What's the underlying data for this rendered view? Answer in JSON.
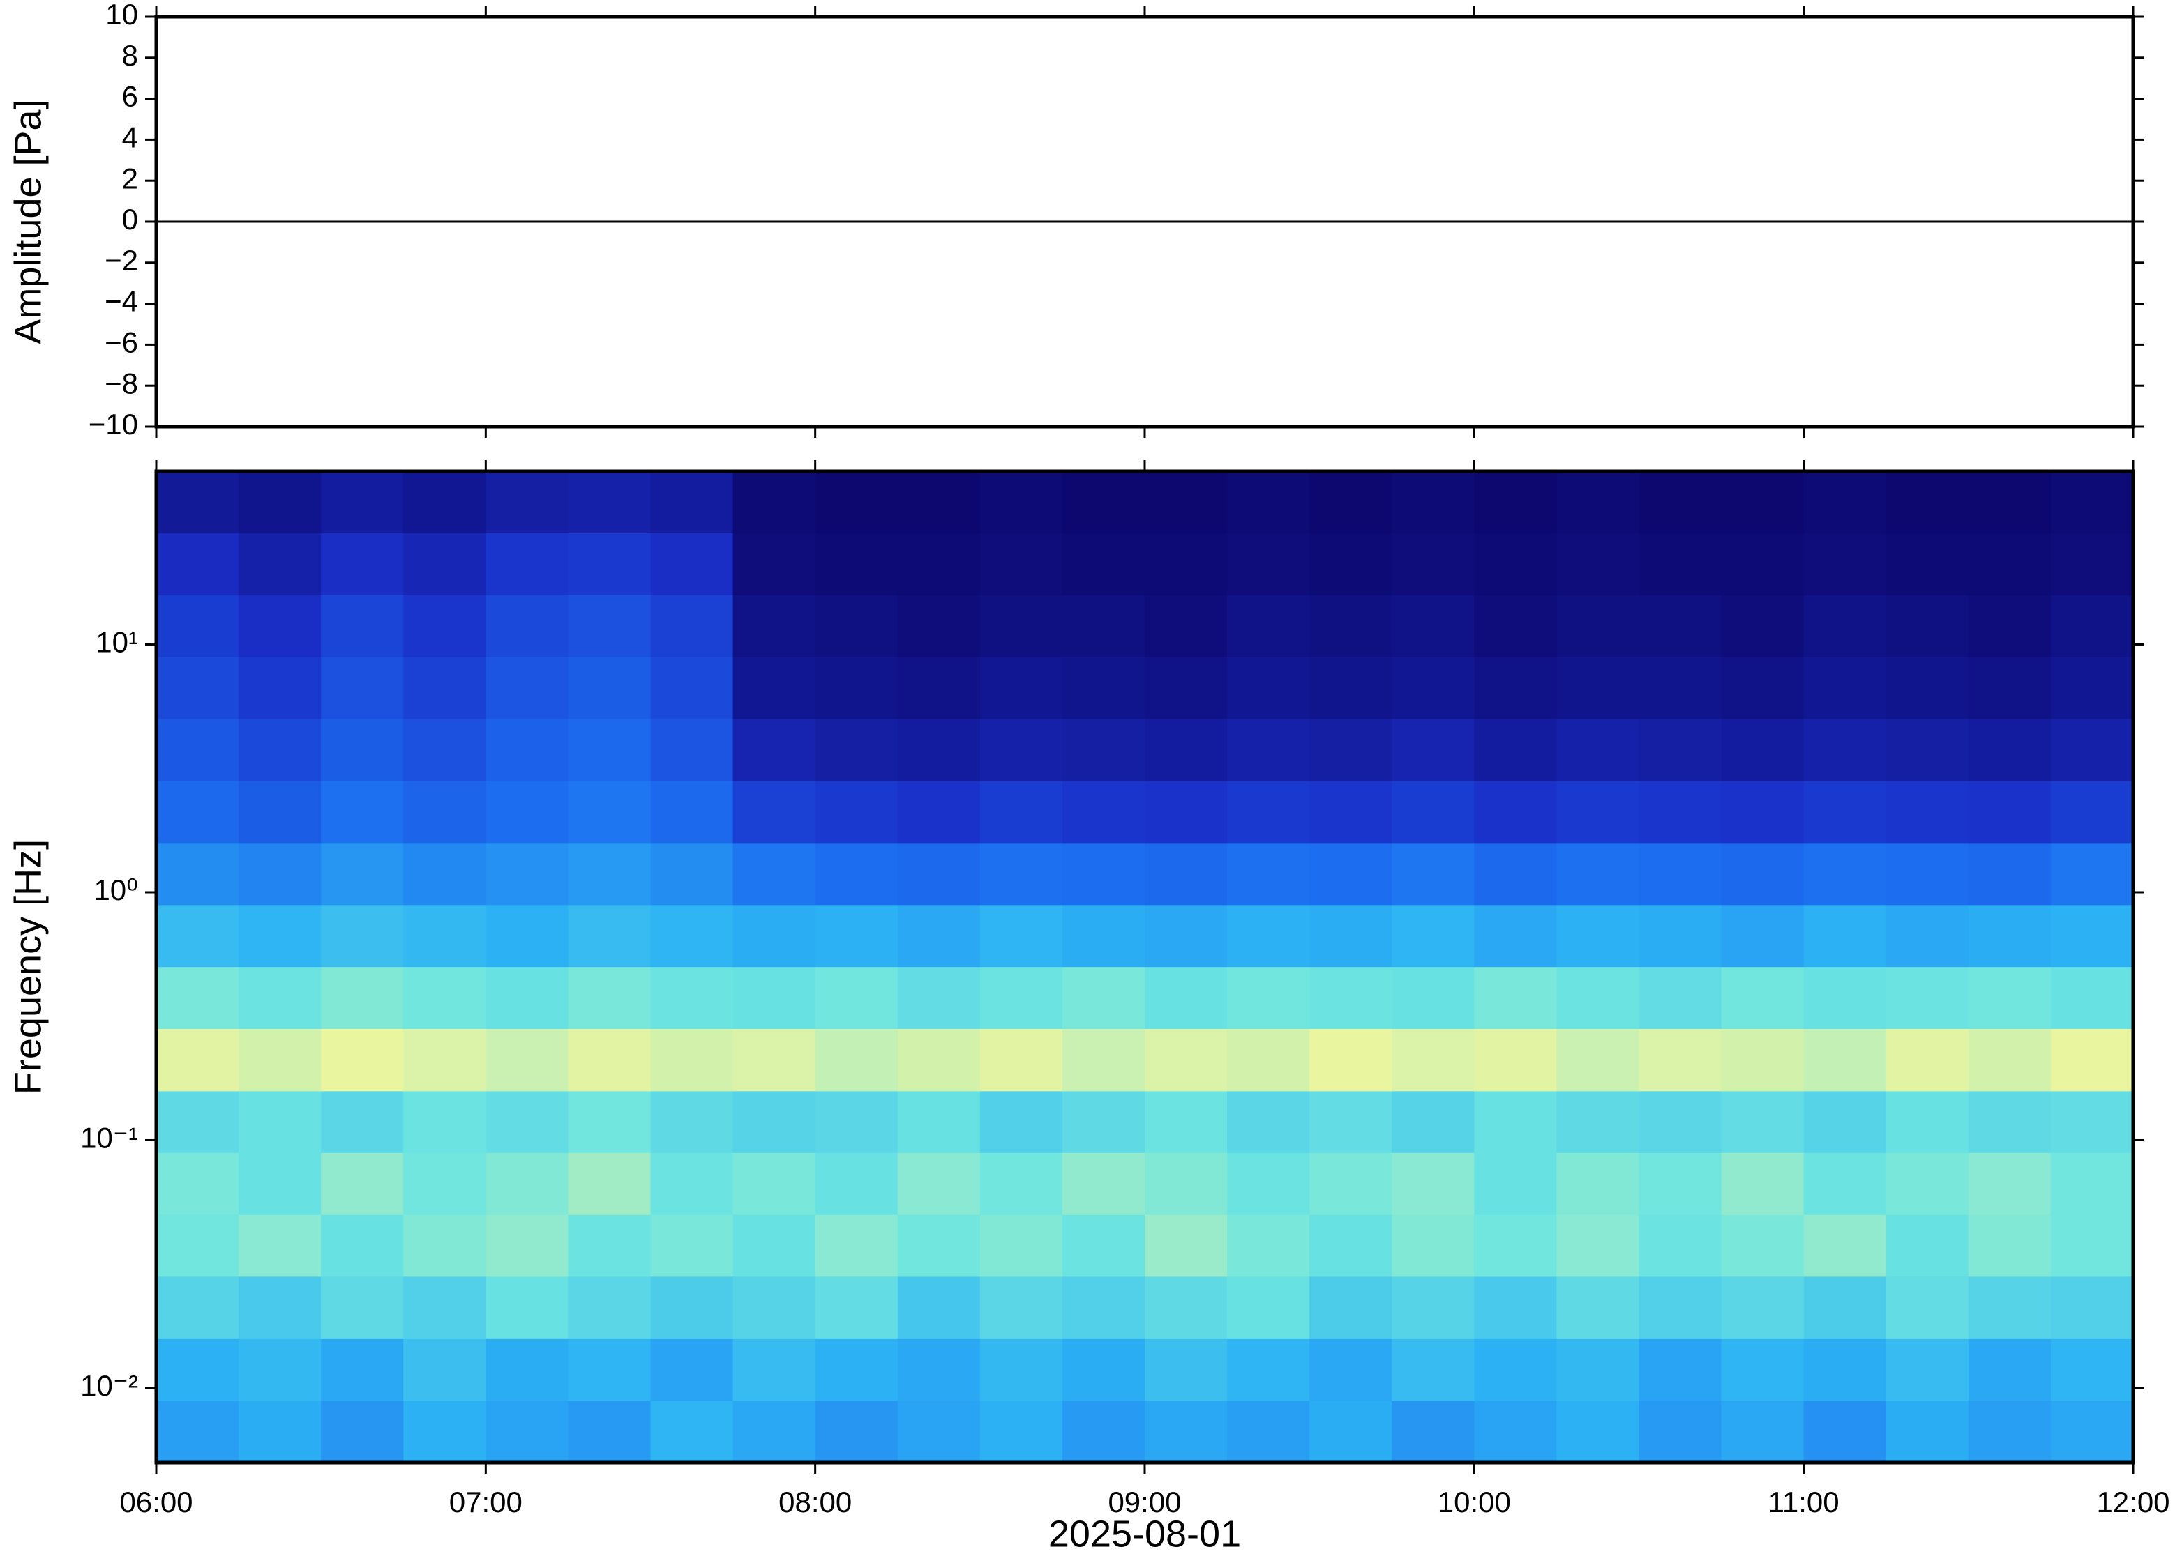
{
  "chart_data": [
    {
      "type": "line",
      "y_label": "Amplitude [Pa]",
      "xlim": [
        6,
        12
      ],
      "xticks": [
        6,
        7,
        8,
        9,
        10,
        11,
        12
      ],
      "ylim": [
        -10,
        10
      ],
      "yticks": [
        {
          "value": -10,
          "label": "−10"
        },
        {
          "value": -8,
          "label": "−8"
        },
        {
          "value": -6,
          "label": "−6"
        },
        {
          "value": -4,
          "label": "−4"
        },
        {
          "value": -2,
          "label": "−2"
        },
        0,
        2,
        4,
        6,
        8,
        10
      ],
      "series": [
        {
          "color": "#000000",
          "x": [
            6,
            6.5,
            7,
            7.5,
            8,
            8.5,
            9,
            9.5,
            10,
            10.5,
            11,
            11.5,
            12
          ],
          "values": [
            0,
            0,
            0,
            0,
            0,
            0,
            0,
            0,
            0,
            0,
            0,
            0,
            0
          ]
        }
      ]
    },
    {
      "type": "heatmap",
      "y_label": "Frequency [Hz]",
      "x_label": "2025-08-01",
      "xlim": [
        6,
        12
      ],
      "xticks": [
        {
          "value": 6,
          "label": "06:00"
        },
        {
          "value": 7,
          "label": "07:00"
        },
        {
          "value": 8,
          "label": "08:00"
        },
        {
          "value": 9,
          "label": "09:00"
        },
        {
          "value": 10,
          "label": "10:00"
        },
        {
          "value": 11,
          "label": "11:00"
        },
        {
          "value": 12,
          "label": "12:00"
        }
      ],
      "ylim": [
        0.005,
        50
      ],
      "log_y": true,
      "yticks": [
        {
          "value": 0.01,
          "label": "10⁻²"
        },
        {
          "value": 0.1,
          "label": "10⁻¹"
        },
        {
          "value": 1,
          "label": "10⁰"
        },
        {
          "value": 10,
          "label": "10¹"
        }
      ],
      "colormap": [
        "#0c0870",
        "#1a2fc8",
        "#1c6cf0",
        "#2cb2f4",
        "#6ee6e0",
        "#eaf5a0"
      ],
      "x_bins": [
        6,
        6.25,
        6.5,
        6.75,
        7,
        7.25,
        7.5,
        7.75,
        8,
        8.25,
        8.5,
        8.75,
        9,
        9.25,
        9.5,
        9.75,
        10,
        10.25,
        10.5,
        10.75,
        11,
        11.25,
        11.5,
        11.75,
        12
      ],
      "y_bins": [
        0.005,
        0.0089,
        0.0158,
        0.0282,
        0.0501,
        0.0891,
        0.158,
        0.282,
        0.501,
        0.891,
        1.585,
        2.818,
        5.012,
        8.913,
        15.85,
        28.18,
        50.12
      ],
      "z": [
        [
          0.42,
          0.45,
          0.4,
          0.46,
          0.43,
          0.41,
          0.47,
          0.44,
          0.4,
          0.43,
          0.46,
          0.41,
          0.44,
          0.42,
          0.45,
          0.4,
          0.43,
          0.46,
          0.41,
          0.44,
          0.39,
          0.45,
          0.42,
          0.44
        ],
        [
          0.46,
          0.48,
          0.44,
          0.5,
          0.45,
          0.47,
          0.43,
          0.49,
          0.46,
          0.44,
          0.48,
          0.45,
          0.5,
          0.47,
          0.44,
          0.49,
          0.46,
          0.48,
          0.43,
          0.47,
          0.45,
          0.49,
          0.44,
          0.47
        ],
        [
          0.56,
          0.53,
          0.58,
          0.55,
          0.6,
          0.57,
          0.54,
          0.56,
          0.59,
          0.52,
          0.57,
          0.55,
          0.58,
          0.6,
          0.54,
          0.56,
          0.53,
          0.58,
          0.55,
          0.57,
          0.54,
          0.59,
          0.56,
          0.55
        ],
        [
          0.62,
          0.65,
          0.6,
          0.64,
          0.66,
          0.61,
          0.63,
          0.6,
          0.65,
          0.62,
          0.64,
          0.61,
          0.67,
          0.63,
          0.6,
          0.64,
          0.62,
          0.65,
          0.61,
          0.63,
          0.66,
          0.6,
          0.64,
          0.62
        ],
        [
          0.63,
          0.6,
          0.66,
          0.62,
          0.64,
          0.68,
          0.61,
          0.63,
          0.6,
          0.65,
          0.62,
          0.66,
          0.64,
          0.61,
          0.63,
          0.65,
          0.6,
          0.64,
          0.62,
          0.66,
          0.61,
          0.63,
          0.65,
          0.62
        ],
        [
          0.58,
          0.6,
          0.57,
          0.61,
          0.59,
          0.62,
          0.58,
          0.56,
          0.57,
          0.6,
          0.55,
          0.58,
          0.61,
          0.57,
          0.59,
          0.56,
          0.6,
          0.58,
          0.57,
          0.59,
          0.56,
          0.6,
          0.58,
          0.59
        ],
        [
          0.76,
          0.74,
          0.77,
          0.75,
          0.73,
          0.76,
          0.74,
          0.75,
          0.72,
          0.74,
          0.76,
          0.73,
          0.75,
          0.74,
          0.77,
          0.75,
          0.76,
          0.73,
          0.75,
          0.74,
          0.72,
          0.76,
          0.74,
          0.77
        ],
        [
          0.63,
          0.61,
          0.64,
          0.62,
          0.6,
          0.63,
          0.61,
          0.6,
          0.62,
          0.59,
          0.61,
          0.63,
          0.6,
          0.62,
          0.61,
          0.6,
          0.63,
          0.61,
          0.59,
          0.62,
          0.6,
          0.61,
          0.62,
          0.6
        ],
        [
          0.49,
          0.47,
          0.5,
          0.48,
          0.46,
          0.49,
          0.47,
          0.45,
          0.46,
          0.44,
          0.47,
          0.45,
          0.44,
          0.46,
          0.45,
          0.47,
          0.44,
          0.46,
          0.45,
          0.43,
          0.46,
          0.44,
          0.45,
          0.46
        ],
        [
          0.38,
          0.36,
          0.4,
          0.37,
          0.39,
          0.41,
          0.38,
          0.33,
          0.31,
          0.3,
          0.32,
          0.31,
          0.3,
          0.32,
          0.31,
          0.33,
          0.3,
          0.32,
          0.31,
          0.3,
          0.32,
          0.31,
          0.3,
          0.33
        ],
        [
          0.3,
          0.27,
          0.32,
          0.29,
          0.31,
          0.33,
          0.3,
          0.2,
          0.18,
          0.16,
          0.19,
          0.17,
          0.16,
          0.18,
          0.17,
          0.19,
          0.16,
          0.18,
          0.17,
          0.16,
          0.18,
          0.17,
          0.16,
          0.19
        ],
        [
          0.26,
          0.22,
          0.27,
          0.24,
          0.28,
          0.3,
          0.25,
          0.11,
          0.09,
          0.08,
          0.1,
          0.09,
          0.08,
          0.1,
          0.09,
          0.11,
          0.08,
          0.1,
          0.09,
          0.08,
          0.1,
          0.09,
          0.08,
          0.1
        ],
        [
          0.22,
          0.18,
          0.24,
          0.2,
          0.25,
          0.27,
          0.22,
          0.06,
          0.05,
          0.04,
          0.06,
          0.05,
          0.04,
          0.06,
          0.05,
          0.06,
          0.04,
          0.05,
          0.05,
          0.04,
          0.06,
          0.05,
          0.04,
          0.06
        ],
        [
          0.19,
          0.15,
          0.21,
          0.17,
          0.22,
          0.24,
          0.2,
          0.04,
          0.03,
          0.02,
          0.03,
          0.03,
          0.02,
          0.04,
          0.03,
          0.04,
          0.02,
          0.03,
          0.03,
          0.02,
          0.04,
          0.03,
          0.02,
          0.04
        ],
        [
          0.14,
          0.1,
          0.15,
          0.12,
          0.17,
          0.18,
          0.15,
          0.02,
          0.01,
          0.01,
          0.02,
          0.01,
          0.01,
          0.02,
          0.01,
          0.02,
          0.01,
          0.02,
          0.01,
          0.01,
          0.02,
          0.01,
          0.01,
          0.02
        ],
        [
          0.07,
          0.05,
          0.08,
          0.06,
          0.09,
          0.1,
          0.08,
          0.01,
          0.0,
          0.0,
          0.01,
          0.0,
          0.0,
          0.01,
          0.0,
          0.01,
          0.0,
          0.01,
          0.0,
          0.0,
          0.01,
          0.0,
          0.0,
          0.01
        ]
      ]
    }
  ]
}
